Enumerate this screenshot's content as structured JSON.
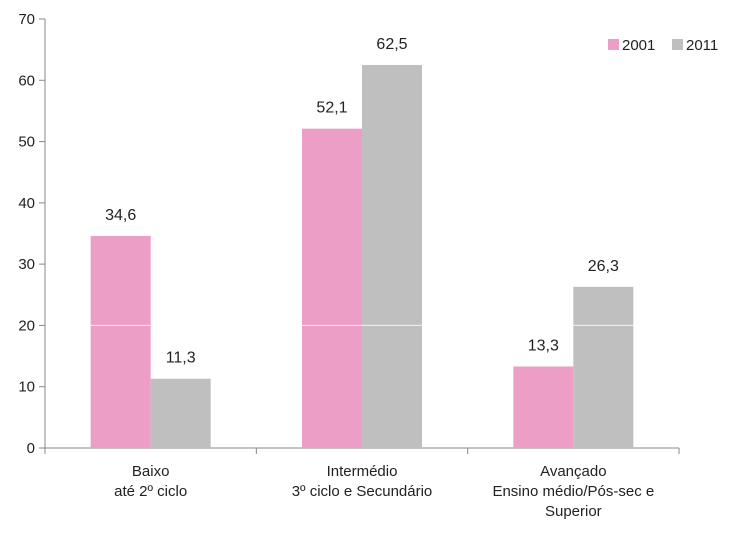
{
  "chart_data": {
    "type": "bar",
    "categories": [
      [
        "Baixo",
        "até 2º ciclo"
      ],
      [
        "Intermédio",
        "3º ciclo e Secundário"
      ],
      [
        "Avançado",
        "Ensino médio/Pós-sec e",
        "Superior"
      ]
    ],
    "series": [
      {
        "name": "2001",
        "color": "#ec9ec7",
        "values": [
          34.6,
          52.1,
          13.3
        ],
        "labels": [
          "34,6",
          "52,1",
          "13,3"
        ]
      },
      {
        "name": "2011",
        "color": "#bfbfbf",
        "values": [
          11.3,
          62.5,
          26.3
        ],
        "labels": [
          "11,3",
          "62,5",
          "26,3"
        ]
      }
    ],
    "ylim": [
      0,
      70
    ],
    "yticks": [
      0,
      10,
      20,
      30,
      40,
      50,
      60,
      70
    ],
    "title": "",
    "xlabel": "",
    "ylabel": "",
    "legend_position": "top-right",
    "grid": false
  }
}
